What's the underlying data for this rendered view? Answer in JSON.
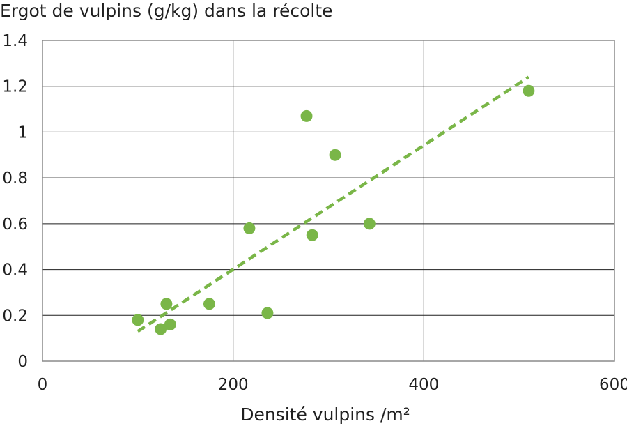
{
  "chart_data": {
    "type": "scatter",
    "title": "Ergot de vulpins (g/kg) dans la récolte",
    "xlabel": "Densité vulpins /m²",
    "ylabel": "",
    "xlim": [
      0,
      600
    ],
    "ylim": [
      0,
      1.4
    ],
    "x_ticks": [
      "0",
      "200",
      "400",
      "600"
    ],
    "y_ticks": [
      "0",
      "0.2",
      "0.4",
      "0.6",
      "0.8",
      "1",
      "1.2",
      "1.4"
    ],
    "x_tick_values": [
      0,
      200,
      400,
      600
    ],
    "y_tick_values": [
      0,
      0.2,
      0.4,
      0.6,
      0.8,
      1,
      1.2,
      1.4
    ],
    "grid": true,
    "legend": "none",
    "series": [
      {
        "points": [
          {
            "x": 100,
            "y": 0.18
          },
          {
            "x": 124,
            "y": 0.14
          },
          {
            "x": 130,
            "y": 0.25
          },
          {
            "x": 134,
            "y": 0.16
          },
          {
            "x": 175,
            "y": 0.25
          },
          {
            "x": 217,
            "y": 0.58
          },
          {
            "x": 236,
            "y": 0.21
          },
          {
            "x": 277,
            "y": 1.07
          },
          {
            "x": 283,
            "y": 0.55
          },
          {
            "x": 307,
            "y": 0.9
          },
          {
            "x": 343,
            "y": 0.6
          },
          {
            "x": 510,
            "y": 1.18
          }
        ],
        "color": "#7ab648"
      }
    ],
    "trendline": {
      "type": "linear",
      "style": "dashed",
      "from": {
        "x": 100,
        "y": 0.13
      },
      "to": {
        "x": 510,
        "y": 1.24
      },
      "color": "#7ab648"
    },
    "colors": {
      "grid": "#1f1f1f",
      "frame": "#8a8a8a",
      "text": "#1f1f1f"
    }
  }
}
